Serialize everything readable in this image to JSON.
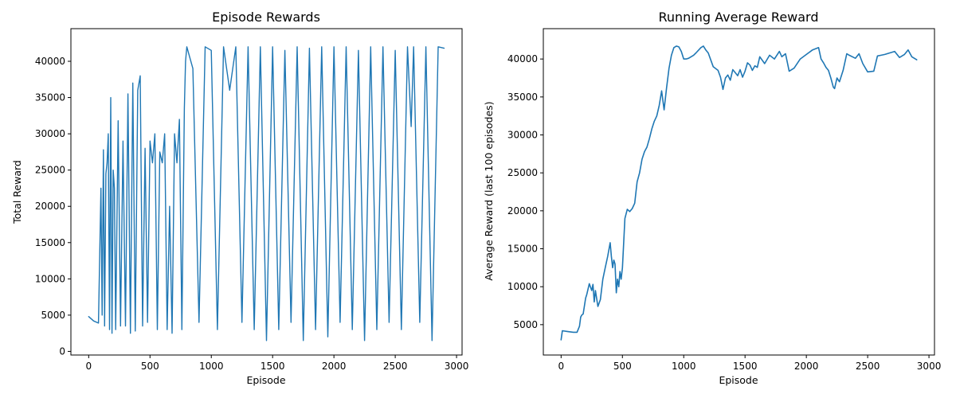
{
  "chart_data": [
    {
      "type": "line",
      "title": "Episode Rewards",
      "xlabel": "Episode",
      "ylabel": "Total Reward",
      "xlim": [
        -145,
        3045
      ],
      "ylim": [
        -500,
        44500
      ],
      "xticks": [
        0,
        500,
        1000,
        1500,
        2000,
        2500,
        3000
      ],
      "yticks": [
        0,
        5000,
        10000,
        15000,
        20000,
        25000,
        30000,
        35000,
        40000
      ],
      "grid": false,
      "legend": "none",
      "color": "#1f77b4",
      "series": [
        {
          "episodes": 2900,
          "x": [
            0,
            40,
            80,
            100,
            110,
            120,
            130,
            140,
            150,
            160,
            170,
            180,
            190,
            200,
            210,
            220,
            240,
            260,
            280,
            300,
            320,
            340,
            360,
            380,
            400,
            420,
            440,
            460,
            480,
            500,
            520,
            540,
            560,
            580,
            600,
            620,
            640,
            660,
            680,
            700,
            720,
            740,
            760,
            780,
            790,
            800,
            850,
            900,
            950,
            1000,
            1050,
            1100,
            1150,
            1200,
            1250,
            1300,
            1350,
            1400,
            1450,
            1500,
            1550,
            1600,
            1650,
            1700,
            1750,
            1800,
            1850,
            1900,
            1950,
            2000,
            2050,
            2100,
            2150,
            2200,
            2250,
            2300,
            2350,
            2400,
            2450,
            2500,
            2550,
            2600,
            2630,
            2650,
            2700,
            2750,
            2800,
            2850,
            2899
          ],
          "y": [
            4800,
            4200,
            3900,
            22500,
            5000,
            27800,
            3500,
            24500,
            26000,
            30000,
            3000,
            35000,
            2500,
            25000,
            22500,
            3000,
            31800,
            3500,
            29000,
            3500,
            35500,
            2500,
            37000,
            2800,
            36000,
            38000,
            3500,
            28000,
            4000,
            29000,
            26000,
            30000,
            3000,
            27500,
            26000,
            30000,
            3000,
            20000,
            2500,
            30000,
            26000,
            32000,
            3000,
            33500,
            40000,
            42000,
            39000,
            4000,
            42000,
            41500,
            3000,
            42000,
            36000,
            42000,
            4000,
            42000,
            3000,
            42000,
            1500,
            42000,
            3000,
            41500,
            4000,
            42000,
            1500,
            41800,
            3000,
            42000,
            2000,
            42000,
            4000,
            42000,
            3000,
            41500,
            1500,
            42000,
            3000,
            42000,
            4000,
            41500,
            3000,
            42000,
            31000,
            42000,
            4000,
            42000,
            1500,
            42000,
            41800
          ]
        }
      ]
    },
    {
      "type": "line",
      "title": "Running Average Reward",
      "xlabel": "Episode",
      "ylabel": "Average Reward (last 100 episodes)",
      "xlim": [
        -145,
        3045
      ],
      "ylim": [
        1000,
        44000
      ],
      "xticks": [
        0,
        500,
        1000,
        1500,
        2000,
        2500,
        3000
      ],
      "yticks": [
        5000,
        10000,
        15000,
        20000,
        25000,
        30000,
        35000,
        40000
      ],
      "grid": false,
      "legend": "none",
      "color": "#1f77b4",
      "series": [
        {
          "x": [
            0,
            10,
            50,
            100,
            130,
            150,
            160,
            170,
            180,
            200,
            210,
            230,
            250,
            260,
            270,
            280,
            300,
            320,
            340,
            360,
            380,
            400,
            410,
            420,
            430,
            440,
            450,
            460,
            470,
            480,
            490,
            500,
            520,
            540,
            560,
            580,
            600,
            620,
            640,
            660,
            680,
            700,
            720,
            740,
            760,
            780,
            800,
            820,
            840,
            860,
            880,
            900,
            920,
            940,
            960,
            980,
            1000,
            1010,
            1020,
            1040,
            1060,
            1080,
            1100,
            1140,
            1160,
            1180,
            1200,
            1240,
            1280,
            1300,
            1320,
            1340,
            1360,
            1380,
            1400,
            1420,
            1440,
            1460,
            1480,
            1500,
            1520,
            1540,
            1560,
            1580,
            1600,
            1620,
            1660,
            1700,
            1740,
            1780,
            1800,
            1830,
            1860,
            1900,
            1950,
            2000,
            2050,
            2100,
            2120,
            2140,
            2160,
            2180,
            2200,
            2220,
            2230,
            2250,
            2270,
            2300,
            2330,
            2350,
            2400,
            2430,
            2460,
            2500,
            2550,
            2580,
            2610,
            2640,
            2680,
            2720,
            2760,
            2800,
            2830,
            2860,
            2900
          ],
          "y": [
            3000,
            4200,
            4100,
            4000,
            4000,
            4800,
            6000,
            6300,
            6400,
            8500,
            9000,
            10400,
            9500,
            10300,
            8000,
            9500,
            7400,
            8300,
            11000,
            12500,
            14000,
            15800,
            14000,
            12500,
            13500,
            13000,
            9200,
            11000,
            10000,
            12000,
            11000,
            12500,
            19000,
            20200,
            19900,
            20300,
            21000,
            23800,
            25000,
            26800,
            27800,
            28400,
            29500,
            30800,
            31800,
            32500,
            33900,
            35800,
            33300,
            36200,
            38800,
            40500,
            41500,
            41700,
            41600,
            41000,
            40000,
            40000,
            40000,
            40100,
            40300,
            40500,
            40800,
            41500,
            41700,
            41200,
            40800,
            39000,
            38500,
            37600,
            36000,
            37500,
            37900,
            37200,
            38600,
            38200,
            37800,
            38600,
            37600,
            38400,
            39500,
            39200,
            38500,
            39100,
            38900,
            40300,
            39400,
            40500,
            40000,
            41000,
            40300,
            40700,
            38400,
            38800,
            40000,
            40600,
            41200,
            41500,
            40000,
            39500,
            38900,
            38500,
            37500,
            36300,
            36100,
            37500,
            37000,
            38500,
            40700,
            40500,
            40100,
            40700,
            39400,
            38300,
            38400,
            40400,
            40500,
            40600,
            40800,
            41000,
            40200,
            40600,
            41200,
            40300,
            39900
          ]
        }
      ]
    }
  ]
}
